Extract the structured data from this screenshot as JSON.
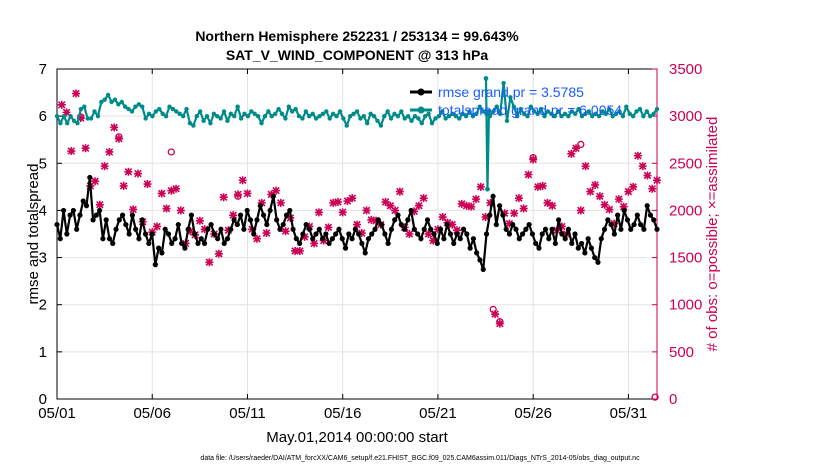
{
  "chart_data": {
    "type": "line",
    "title": "Northern Hemisphere 252231 / 253134 = 99.643%",
    "subtitle": "SAT_V_WIND_COMPONENT @ 313 hPa",
    "xlabel": "May.01,2014 00:00:00 start",
    "ylabel_left": "rmse and totalspread",
    "ylabel_right": "# of obs: o=possible; ×=assimilated",
    "xlim": [
      0,
      31.5
    ],
    "ylim_left": [
      0,
      7
    ],
    "ylim_right": [
      0,
      3500
    ],
    "x_ticks": [
      0,
      5,
      10,
      15,
      20,
      25,
      30
    ],
    "x_tick_labels": [
      "05/01",
      "05/06",
      "05/11",
      "05/16",
      "05/21",
      "05/26",
      "05/31"
    ],
    "y_left_ticks": [
      0,
      1,
      2,
      3,
      4,
      5,
      6,
      7
    ],
    "y_left_tick_labels": [
      "0",
      "1",
      "2",
      "3",
      "4",
      "5",
      "6",
      "7"
    ],
    "y_right_ticks": [
      0,
      500,
      1000,
      1500,
      2000,
      2500,
      3000,
      3500
    ],
    "y_right_tick_labels": [
      "0",
      "500",
      "1000",
      "1500",
      "2000",
      "2500",
      "3000",
      "3500"
    ],
    "grid": true,
    "legend_position": "top-right",
    "colors": {
      "rmse": "#000000",
      "spread": "#008b8b",
      "obs": "#cc0055",
      "right_axis": "#cc0055",
      "legend_text": "#1a5cff"
    },
    "series": [
      {
        "name": "rmse grand pr = 3.5785",
        "axis": "left",
        "values": [
          3.7,
          3.4,
          4.0,
          3.5,
          3.9,
          4.0,
          3.6,
          3.9,
          4.2,
          4.1,
          4.7,
          3.8,
          3.9,
          4.0,
          3.4,
          3.8,
          3.4,
          3.3,
          3.6,
          3.8,
          3.9,
          3.7,
          3.5,
          3.9,
          3.6,
          3.4,
          3.8,
          3.5,
          3.3,
          3.5,
          2.85,
          3.2,
          3.1,
          3.6,
          3.5,
          3.3,
          3.4,
          3.7,
          3.3,
          3.2,
          3.6,
          3.9,
          3.5,
          3.3,
          3.4,
          3.3,
          3.6,
          3.7,
          3.5,
          3.4,
          3.6,
          3.3,
          3.4,
          3.6,
          3.8,
          3.7,
          3.9,
          3.6,
          4.0,
          3.8,
          3.5,
          3.8,
          4.1,
          3.9,
          3.7,
          4.0,
          4.3,
          3.8,
          3.6,
          3.7,
          3.9,
          4.0,
          3.6,
          3.4,
          3.3,
          3.5,
          3.7,
          3.6,
          3.4,
          3.5,
          3.6,
          3.4,
          3.5,
          3.3,
          3.4,
          3.5,
          3.6,
          3.4,
          3.2,
          3.5,
          3.4,
          3.6,
          3.5,
          3.3,
          3.1,
          3.4,
          3.5,
          3.6,
          3.8,
          3.7,
          3.5,
          3.3,
          3.6,
          3.8,
          3.9,
          3.7,
          3.6,
          3.8,
          4.0,
          3.6,
          3.5,
          3.4,
          3.6,
          3.8,
          3.6,
          3.5,
          3.3,
          3.6,
          3.4,
          3.7,
          3.5,
          3.3,
          3.5,
          3.4,
          3.6,
          3.5,
          3.2,
          3.4,
          3.1,
          2.95,
          2.75,
          3.5,
          3.9,
          4.3,
          3.7,
          4.1,
          3.9,
          3.6,
          3.5,
          3.7,
          3.6,
          3.4,
          3.5,
          3.6,
          3.7,
          3.5,
          3.3,
          3.2,
          3.5,
          3.6,
          3.4,
          3.6,
          3.3,
          3.8,
          3.5,
          3.4,
          3.6,
          3.3,
          3.5,
          3.2,
          3.3,
          3.1,
          3.4,
          3.2,
          3.0,
          2.9,
          3.4,
          3.6,
          3.8,
          3.7,
          3.5,
          3.9,
          3.6,
          4.0,
          3.8,
          3.6,
          3.7,
          3.9,
          3.7,
          3.6,
          4.1,
          3.9,
          3.8,
          3.6
        ]
      },
      {
        "name": "totalspread grand pr = 6.0054",
        "axis": "left",
        "values": [
          6.0,
          5.85,
          6.0,
          5.85,
          6.0,
          5.9,
          5.85,
          6.15,
          6.2,
          5.95,
          5.95,
          6.1,
          6.0,
          6.3,
          6.35,
          6.45,
          6.3,
          6.35,
          6.25,
          6.3,
          6.2,
          6.15,
          6.1,
          6.2,
          6.25,
          6.2,
          5.95,
          6.05,
          6.0,
          6.1,
          6.15,
          6.05,
          6.0,
          6.2,
          6.15,
          6.1,
          6.05,
          6.0,
          6.15,
          5.85,
          5.8,
          6.0,
          6.1,
          5.9,
          6.0,
          5.85,
          6.05,
          6.0,
          5.95,
          6.1,
          5.9,
          6.05,
          6.0,
          6.2,
          5.95,
          6.05,
          6.0,
          6.1,
          6.05,
          6.0,
          5.85,
          6.0,
          6.1,
          6.0,
          6.05,
          6.15,
          6.05,
          5.95,
          6.2,
          6.1,
          6.15,
          6.0,
          5.95,
          6.1,
          6.0,
          6.05,
          5.95,
          6.0,
          6.05,
          6.1,
          5.95,
          6.05,
          6.0,
          6.1,
          5.95,
          5.8,
          6.0,
          6.05,
          6.1,
          5.95,
          6.0,
          5.85,
          6.05,
          6.0,
          5.9,
          5.8,
          6.0,
          6.1,
          5.95,
          6.05,
          6.0,
          6.1,
          5.95,
          6.0,
          5.9,
          6.0,
          5.95,
          5.85,
          6.0,
          6.05,
          5.85,
          5.95,
          6.0,
          6.1,
          5.95,
          6.0,
          6.05,
          6.0,
          5.95,
          6.05,
          6.0,
          6.1,
          6.0,
          6.05,
          6.2,
          6.1,
          6.05,
          6.0,
          6.1,
          6.2,
          6.05,
          6.7,
          5.9,
          6.4,
          6.2,
          6.0,
          6.15,
          6.05,
          6.0,
          6.2,
          6.1,
          6.05,
          6.15,
          6.0,
          6.1,
          6.05,
          6.0,
          6.1,
          6.0,
          6.05,
          6.0,
          6.1,
          6.05,
          6.15,
          6.0,
          6.05,
          6.1,
          6.0,
          6.05,
          6.0,
          6.1,
          6.05,
          6.15,
          6.0,
          6.05,
          6.1,
          6.0,
          6.2,
          6.05,
          6.0,
          6.1,
          6.15,
          6.0,
          6.1,
          6.0,
          6.05,
          6.15
        ]
      }
    ],
    "spread_spike": {
      "x": 22.6,
      "values": [
        6.8,
        4.45,
        6.1
      ]
    },
    "obs_assimilated": {
      "name": "assimilated",
      "axis": "right",
      "points": [
        [
          0.25,
          3120
        ],
        [
          0.5,
          3040
        ],
        [
          0.75,
          2630
        ],
        [
          1,
          3240
        ],
        [
          1.25,
          2980
        ],
        [
          1.5,
          2660
        ],
        [
          1.75,
          2260
        ],
        [
          2,
          2310
        ],
        [
          2.25,
          2060
        ],
        [
          2.5,
          2470
        ],
        [
          2.75,
          2620
        ],
        [
          3,
          2880
        ],
        [
          3.25,
          2760
        ],
        [
          3.5,
          2260
        ],
        [
          3.75,
          2410
        ],
        [
          4,
          2010
        ],
        [
          4.25,
          2390
        ],
        [
          4.5,
          1880
        ],
        [
          4.75,
          2280
        ],
        [
          5,
          1770
        ],
        [
          5.25,
          1830
        ],
        [
          5.5,
          2180
        ],
        [
          5.75,
          2020
        ],
        [
          6,
          2210
        ],
        [
          6.25,
          2230
        ],
        [
          6.5,
          2000
        ],
        [
          6.75,
          1650
        ],
        [
          7,
          1780
        ],
        [
          7.25,
          1740
        ],
        [
          7.5,
          1890
        ],
        [
          7.75,
          1800
        ],
        [
          8,
          1450
        ],
        [
          8.25,
          1750
        ],
        [
          8.5,
          1540
        ],
        [
          8.75,
          2140
        ],
        [
          9,
          1790
        ],
        [
          9.25,
          1950
        ],
        [
          9.5,
          2170
        ],
        [
          9.75,
          2320
        ],
        [
          10,
          2180
        ],
        [
          10.25,
          1800
        ],
        [
          10.5,
          1700
        ],
        [
          10.75,
          2080
        ],
        [
          11,
          1760
        ],
        [
          11.25,
          2170
        ],
        [
          11.5,
          2210
        ],
        [
          11.75,
          2080
        ],
        [
          12,
          1780
        ],
        [
          12.25,
          1920
        ],
        [
          12.5,
          1570
        ],
        [
          12.75,
          1570
        ],
        [
          13,
          1720
        ],
        [
          13.25,
          1830
        ],
        [
          13.5,
          1650
        ],
        [
          13.75,
          1980
        ],
        [
          14,
          1680
        ],
        [
          14.25,
          1820
        ],
        [
          14.5,
          2080
        ],
        [
          14.75,
          2090
        ],
        [
          15,
          1980
        ],
        [
          15.25,
          2100
        ],
        [
          15.5,
          2130
        ],
        [
          15.75,
          1850
        ],
        [
          16,
          1760
        ],
        [
          16.25,
          2000
        ],
        [
          16.5,
          1900
        ],
        [
          16.75,
          1890
        ],
        [
          17,
          1850
        ],
        [
          17.25,
          2090
        ],
        [
          17.5,
          2050
        ],
        [
          17.75,
          2000
        ],
        [
          18,
          2200
        ],
        [
          18.25,
          1820
        ],
        [
          18.5,
          1750
        ],
        [
          18.75,
          1990
        ],
        [
          19,
          2050
        ],
        [
          19.25,
          2130
        ],
        [
          19.5,
          1750
        ],
        [
          19.75,
          1680
        ],
        [
          20,
          1800
        ],
        [
          20.25,
          1930
        ],
        [
          20.5,
          1870
        ],
        [
          20.75,
          1850
        ],
        [
          21,
          1790
        ],
        [
          21.25,
          2070
        ],
        [
          21.5,
          2050
        ],
        [
          21.75,
          2040
        ],
        [
          22,
          2120
        ],
        [
          22.25,
          2250
        ],
        [
          22.5,
          1930
        ],
        [
          22.75,
          2080
        ],
        [
          23,
          900
        ],
        [
          23.25,
          800
        ],
        [
          23.5,
          1970
        ],
        [
          23.75,
          1860
        ],
        [
          24,
          1970
        ],
        [
          24.25,
          2130
        ],
        [
          24.5,
          2020
        ],
        [
          24.75,
          2380
        ],
        [
          25,
          2540
        ],
        [
          25.25,
          2250
        ],
        [
          25.5,
          2260
        ],
        [
          25.75,
          2080
        ],
        [
          26,
          2050
        ],
        [
          26.25,
          1790
        ],
        [
          26.5,
          1830
        ],
        [
          26.75,
          1750
        ],
        [
          27,
          2600
        ],
        [
          27.25,
          2660
        ],
        [
          27.5,
          2000
        ],
        [
          27.75,
          2470
        ],
        [
          28,
          2200
        ],
        [
          28.25,
          2270
        ],
        [
          28.5,
          2150
        ],
        [
          28.75,
          2060
        ],
        [
          29,
          2010
        ],
        [
          29.25,
          1860
        ],
        [
          29.5,
          2120
        ],
        [
          29.75,
          2040
        ],
        [
          30,
          2200
        ],
        [
          30.25,
          2250
        ],
        [
          30.5,
          2580
        ],
        [
          30.75,
          2470
        ],
        [
          31,
          2370
        ],
        [
          31.25,
          2230
        ],
        [
          31.5,
          2320
        ]
      ]
    },
    "obs_possible": {
      "name": "possible",
      "axis": "right",
      "points": [
        [
          1.25,
          2990
        ],
        [
          3.25,
          2780
        ],
        [
          6,
          2620
        ],
        [
          9.5,
          2150
        ],
        [
          22.9,
          950
        ],
        [
          23.25,
          820
        ],
        [
          25,
          2560
        ],
        [
          27.5,
          2700
        ],
        [
          31.4,
          20
        ]
      ]
    },
    "footer": "data file: /Users/raeder/DAI/ATM_forcXX/CAM6_setup/f.e21.FHIST_BGC.f09_025.CAM6assim.011/Diags_NTrS_2014-05/obs_diag_output.nc"
  }
}
